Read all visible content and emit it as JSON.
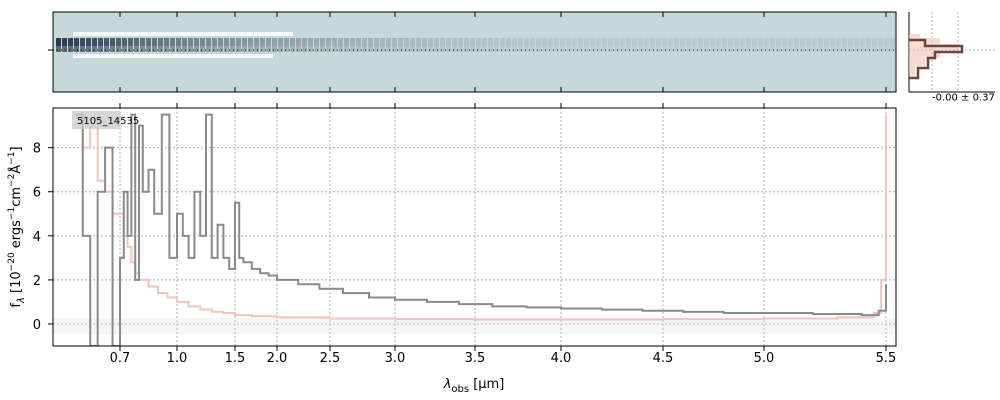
{
  "chart_data": [
    {
      "panel": "2d-spectrum",
      "type": "heatmap",
      "background_color": "#c5d9d9",
      "trace_color": "#1a2440"
    },
    {
      "panel": "profile",
      "type": "line",
      "annotation": "-0.00 ± 0.37",
      "colors": {
        "model": "#f2c0bb",
        "data": "#6b4535"
      }
    },
    {
      "panel": "1d-spectrum",
      "type": "line",
      "label": "5105_14535",
      "xlabel_main": "λ",
      "xlabel_sub": "obs",
      "xlabel_unit": "[μm]",
      "ylabel": "f_λ [10^-20 ergs^-1 cm^-2 Å^-1]",
      "x_scale": "nonlinear (dispersion-like, stretched at long wavelengths)",
      "x_ticks": [
        "0.7",
        "1.0",
        "1.5",
        "2.0",
        "2.5",
        "3.0",
        "3.5",
        "4.0",
        "4.5",
        "5.0",
        "5.5"
      ],
      "y_ticks": [
        "0",
        "2",
        "4",
        "6",
        "8"
      ],
      "ylim": [
        -1,
        9.8
      ],
      "xlim": [
        0.52,
        5.52
      ],
      "grid": true,
      "series": [
        {
          "role": "flux",
          "color": "#8a8a8a",
          "x": [
            0.58,
            0.6,
            0.62,
            0.64,
            0.66,
            0.68,
            0.7,
            0.72,
            0.74,
            0.76,
            0.78,
            0.8,
            0.82,
            0.85,
            0.88,
            0.92,
            0.96,
            1.0,
            1.05,
            1.1,
            1.15,
            1.2,
            1.25,
            1.3,
            1.35,
            1.4,
            1.45,
            1.5,
            1.55,
            1.6,
            1.7,
            1.8,
            1.9,
            2.0,
            2.2,
            2.4,
            2.6,
            2.8,
            3.0,
            3.2,
            3.4,
            3.6,
            3.8,
            4.0,
            4.2,
            4.4,
            4.6,
            4.8,
            5.0,
            5.2,
            5.4,
            5.47,
            5.5
          ],
          "values": [
            9.5,
            4,
            -1,
            6,
            8,
            -1,
            3,
            6,
            4,
            9.5,
            2,
            9,
            6,
            7,
            5,
            9.5,
            3,
            5,
            4,
            3,
            6,
            4,
            9.5,
            3,
            4.5,
            3,
            2.5,
            5.5,
            3,
            2.8,
            2.5,
            2.3,
            2.2,
            2.0,
            1.8,
            1.6,
            1.4,
            1.2,
            1.1,
            1.0,
            0.9,
            0.8,
            0.75,
            0.7,
            0.65,
            0.6,
            0.55,
            0.5,
            0.5,
            0.45,
            0.4,
            0.6,
            1.8
          ]
        },
        {
          "role": "error",
          "color": "#f3c2be",
          "x": [
            0.58,
            0.6,
            0.62,
            0.64,
            0.66,
            0.68,
            0.7,
            0.72,
            0.74,
            0.76,
            0.78,
            0.8,
            0.85,
            0.9,
            0.95,
            1.0,
            1.1,
            1.2,
            1.3,
            1.4,
            1.5,
            1.7,
            2.0,
            2.5,
            3.0,
            3.5,
            4.0,
            4.5,
            5.0,
            5.3,
            5.45,
            5.48,
            5.5
          ],
          "values": [
            9.5,
            8,
            9,
            6.5,
            6,
            5,
            5,
            4,
            3.5,
            2.8,
            2.3,
            2.0,
            1.7,
            1.4,
            1.2,
            1.0,
            0.8,
            0.65,
            0.55,
            0.5,
            0.4,
            0.35,
            0.3,
            0.25,
            0.22,
            0.2,
            0.2,
            0.22,
            0.25,
            0.3,
            0.5,
            2,
            9.5
          ]
        }
      ]
    }
  ]
}
